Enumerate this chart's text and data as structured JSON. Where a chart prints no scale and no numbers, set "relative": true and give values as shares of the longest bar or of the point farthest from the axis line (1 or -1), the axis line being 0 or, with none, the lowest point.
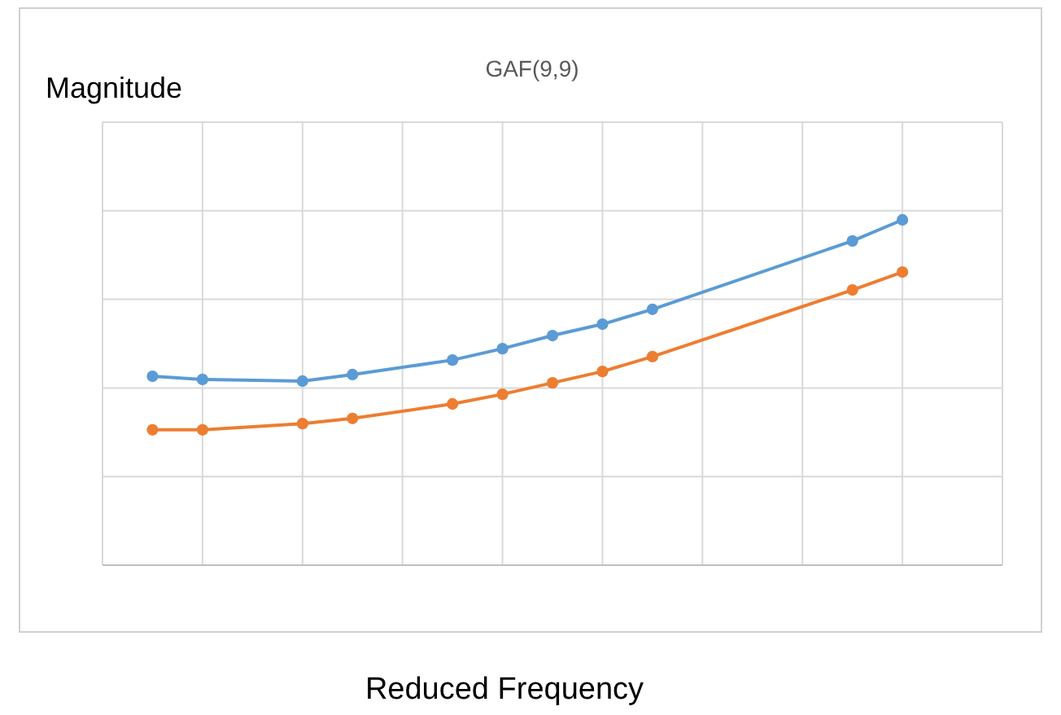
{
  "chart_data": {
    "type": "line",
    "title": "GAF(9,9)",
    "ylabel": "Magnitude",
    "xlabel": "Reduced Frequency",
    "relative": true,
    "grid": true,
    "marker": "circle",
    "categories": [
      null,
      null,
      null,
      null,
      null,
      null,
      null,
      null,
      null,
      null,
      null,
      null,
      null,
      null,
      null,
      null
    ],
    "series": [
      {
        "color": "#5b9bd5",
        "values": [
          0.547,
          0.538,
          null,
          0.533,
          0.552,
          null,
          0.594,
          0.627,
          0.665,
          0.698,
          0.741,
          null,
          null,
          null,
          0.939,
          1
        ]
      },
      {
        "color": "#ed7d31",
        "values": [
          0.392,
          0.392,
          null,
          0.41,
          0.425,
          null,
          0.467,
          0.495,
          0.528,
          0.561,
          0.604,
          null,
          null,
          null,
          0.797,
          0.849
        ]
      }
    ]
  }
}
